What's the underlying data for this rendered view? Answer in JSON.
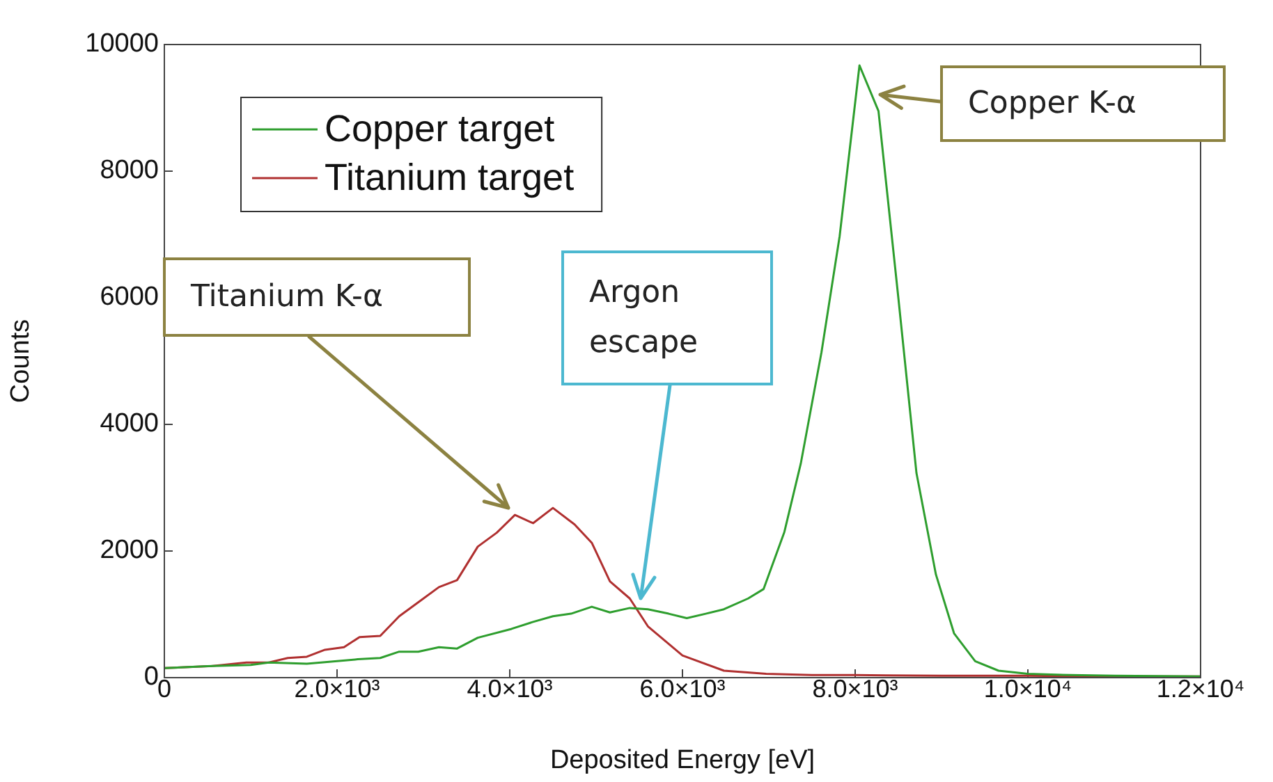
{
  "chart_data": {
    "type": "line",
    "xlabel": "Deposited Energy [eV]",
    "ylabel": "Counts",
    "xlim": [
      0,
      12000
    ],
    "xticks": [
      0,
      {
        "value": 2000,
        "label": "2.0×10³"
      },
      {
        "value": 4000,
        "label": "4.0×10³"
      },
      {
        "value": 6000,
        "label": "6.0×10³"
      },
      {
        "value": 8000,
        "label": "8.0×10³"
      },
      {
        "value": 10000,
        "label": "1.0×10⁴"
      },
      {
        "value": 12000,
        "label": "1.2×10⁴"
      }
    ],
    "ylim": [
      0,
      10000
    ],
    "yticks": [
      0,
      2000,
      4000,
      6000,
      8000,
      10000
    ],
    "legend": "top left",
    "marker": "none",
    "line_style": "solid",
    "series": [
      {
        "name": "Copper target",
        "color": "#2e9e2e",
        "x": [
          0,
          500,
          1000,
          1210,
          1650,
          2000,
          2240,
          2500,
          2720,
          2940,
          3180,
          3390,
          3630,
          4020,
          4270,
          4500,
          4710,
          4950,
          5160,
          5390,
          5600,
          5840,
          6050,
          6270,
          6480,
          6760,
          6940,
          7180,
          7370,
          7610,
          7820,
          8050,
          8270,
          8500,
          8710,
          8935,
          9145,
          9390,
          9660,
          10000,
          10500,
          11000,
          12000
        ],
        "values": [
          150,
          180,
          200,
          240,
          220,
          260,
          290,
          310,
          410,
          410,
          480,
          460,
          630,
          770,
          880,
          970,
          1010,
          1120,
          1030,
          1100,
          1080,
          1010,
          940,
          1010,
          1080,
          1250,
          1400,
          2300,
          3380,
          5140,
          6970,
          9670,
          8950,
          6000,
          3230,
          1630,
          700,
          260,
          110,
          60,
          40,
          30,
          20
        ]
      },
      {
        "name": "Titanium target",
        "color": "#b03030",
        "x": [
          0,
          520,
          950,
          1210,
          1430,
          1650,
          1860,
          2080,
          2260,
          2500,
          2720,
          2940,
          3180,
          3390,
          3630,
          3850,
          4060,
          4270,
          4500,
          4750,
          4950,
          5160,
          5390,
          5600,
          6000,
          6480,
          6970,
          7500,
          8000,
          9000,
          10000,
          11000,
          12000
        ],
        "values": [
          150,
          180,
          240,
          240,
          310,
          330,
          440,
          480,
          640,
          660,
          970,
          1190,
          1430,
          1540,
          2070,
          2290,
          2570,
          2440,
          2680,
          2420,
          2130,
          1520,
          1250,
          810,
          350,
          110,
          60,
          40,
          40,
          30,
          30,
          20,
          20
        ]
      }
    ],
    "annotations": [
      "Titanium K-α",
      "Argon escape",
      "Copper K-α"
    ]
  }
}
